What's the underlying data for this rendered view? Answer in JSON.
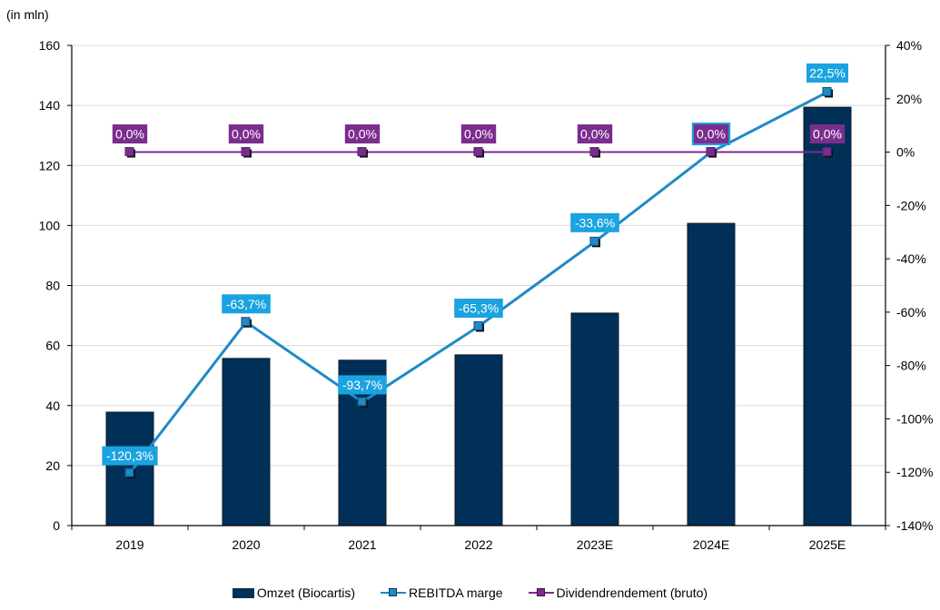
{
  "chart_data": {
    "type": "bar",
    "title": "",
    "unit_label": "(in mln)",
    "categories": [
      "2019",
      "2020",
      "2021",
      "2022",
      "2023E",
      "2024E",
      "2025E"
    ],
    "y_left": {
      "range": [
        0,
        160
      ],
      "ticks": [
        0,
        20,
        40,
        60,
        80,
        100,
        120,
        140,
        160
      ],
      "tick_labels": [
        "0",
        "20",
        "40",
        "60",
        "80",
        "100",
        "120",
        "140",
        "160"
      ]
    },
    "y_right": {
      "range": [
        -140,
        40
      ],
      "ticks": [
        -140,
        -120,
        -100,
        -80,
        -60,
        -40,
        -20,
        0,
        20,
        40
      ],
      "tick_labels": [
        "-140%",
        "-120%",
        "-100%",
        "-80%",
        "-60%",
        "-40%",
        "-20%",
        "0%",
        "20%",
        "40%"
      ]
    },
    "grid": true,
    "legend_position": "bottom",
    "series": [
      {
        "name": "Omzet (Biocartis)",
        "type": "bar",
        "axis": "left",
        "color": "#003057",
        "values": [
          37.8,
          55.7,
          55.1,
          56.9,
          70.8,
          100.7,
          139.4
        ]
      },
      {
        "name": "REBITDA marge",
        "type": "line",
        "axis": "right",
        "color": "#1f8ac7",
        "label_bg": "#1aa3e0",
        "values": [
          -120.3,
          -63.7,
          -93.7,
          -65.3,
          -33.6,
          0.0,
          22.5
        ],
        "data_labels": [
          "-120,3%",
          "-63,7%",
          "-93,7%",
          "-65,3%",
          "-33,6%",
          "",
          "22,5%"
        ]
      },
      {
        "name": "Dividendrendement (bruto)",
        "type": "line",
        "axis": "right",
        "color": "#7b2d8e",
        "label_bg": "#7b2d8e",
        "values": [
          0.0,
          0.0,
          0.0,
          0.0,
          0.0,
          0.0,
          0.0
        ],
        "data_labels": [
          "0,0%",
          "0,0%",
          "0,0%",
          "0,0%",
          "0,0%",
          "0,0%",
          "0,0%"
        ]
      }
    ]
  }
}
